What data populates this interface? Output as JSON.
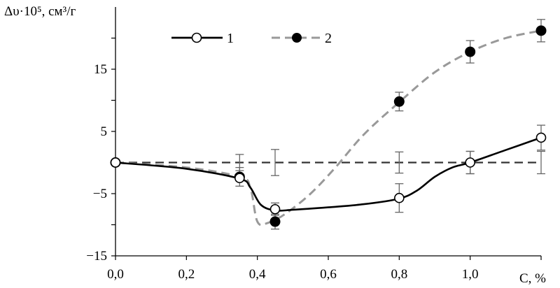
{
  "chart_data": {
    "type": "line",
    "ylabel": "Δυ·10⁵, см³/г",
    "xlabel": "C, %",
    "xlim": [
      0,
      1.2
    ],
    "ylim": [
      -15,
      25
    ],
    "x_ticks": [
      0,
      0.2,
      0.4,
      0.6,
      0.8,
      1.0
    ],
    "x_tick_labels": [
      "0,0",
      "0,2",
      "0,4",
      "0,6",
      "0,8",
      "1,0"
    ],
    "y_ticks": [
      -15,
      -5,
      5,
      15
    ],
    "y_tick_labels": [
      "−15",
      "−5",
      "5",
      "15"
    ],
    "grid": false,
    "legend_position": "top",
    "reference_line": {
      "y": 0,
      "style": "dashed",
      "color": "#333333"
    },
    "series": [
      {
        "name": "1",
        "style": "solid",
        "color": "#000000",
        "marker": "open-circle",
        "points": [
          {
            "x": 0.0,
            "y": 0.0,
            "err": 0.0
          },
          {
            "x": 0.35,
            "y": -2.5,
            "err": 0.0
          },
          {
            "x": 0.45,
            "y": -7.5,
            "err": 1.0
          },
          {
            "x": 0.8,
            "y": -5.7,
            "err": 2.3
          },
          {
            "x": 1.0,
            "y": 0.0,
            "err": 1.8
          },
          {
            "x": 1.2,
            "y": 4.0,
            "err": 2.0
          }
        ],
        "curve": [
          [
            0.0,
            0.0
          ],
          [
            0.2,
            -1.0
          ],
          [
            0.35,
            -2.6
          ],
          [
            0.38,
            -4.0
          ],
          [
            0.41,
            -6.8
          ],
          [
            0.45,
            -7.7
          ],
          [
            0.5,
            -7.6
          ],
          [
            0.6,
            -7.2
          ],
          [
            0.7,
            -6.7
          ],
          [
            0.8,
            -5.8
          ],
          [
            0.85,
            -4.5
          ],
          [
            0.9,
            -2.3
          ],
          [
            0.95,
            -0.8
          ],
          [
            1.0,
            0.0
          ],
          [
            1.1,
            2.0
          ],
          [
            1.2,
            4.0
          ]
        ]
      },
      {
        "name": "2",
        "style": "dashed",
        "color": "#999999",
        "marker": "filled-circle",
        "points": [
          {
            "x": 0.0,
            "y": 0.0,
            "err": 0.0
          },
          {
            "x": 0.35,
            "y": -2.3,
            "err": 1.5
          },
          {
            "x": 0.45,
            "y": -9.5,
            "err": 1.2
          },
          {
            "x": 0.8,
            "y": 9.8,
            "err": 1.5
          },
          {
            "x": 1.0,
            "y": 17.8,
            "err": 1.8
          },
          {
            "x": 1.2,
            "y": 21.2,
            "err": 1.8
          }
        ],
        "curve": [
          [
            0.0,
            0.0
          ],
          [
            0.2,
            -0.8
          ],
          [
            0.35,
            -2.3
          ],
          [
            0.38,
            -4.0
          ],
          [
            0.4,
            -9.5
          ],
          [
            0.43,
            -9.7
          ],
          [
            0.48,
            -8.2
          ],
          [
            0.55,
            -5.0
          ],
          [
            0.62,
            -0.8
          ],
          [
            0.7,
            4.5
          ],
          [
            0.8,
            9.7
          ],
          [
            0.9,
            14.5
          ],
          [
            1.0,
            17.8
          ],
          [
            1.1,
            20.0
          ],
          [
            1.2,
            21.2
          ]
        ]
      }
    ],
    "error_bars_on_reference": [
      {
        "x": 0.35,
        "err": 1.3
      },
      {
        "x": 0.45,
        "err": 2.1
      },
      {
        "x": 0.8,
        "err": 1.7
      },
      {
        "x": 1.0,
        "err": 1.8
      },
      {
        "x": 1.2,
        "err": 1.8
      }
    ]
  }
}
